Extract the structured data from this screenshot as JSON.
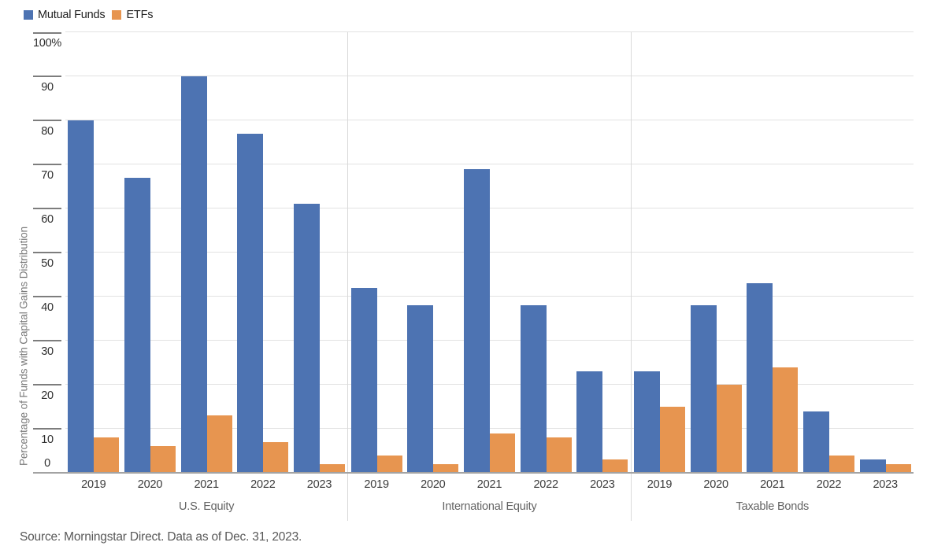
{
  "legend": {
    "mutual_funds": "Mutual Funds",
    "etfs": "ETFs"
  },
  "y_axis_title": "Percentage of Funds with Capital Gains Distribution",
  "source_note": "Source: Morningstar Direct. Data as of Dec. 31, 2023.",
  "colors": {
    "mutual_funds": "#4d73b2",
    "etfs": "#e79550",
    "gridline": "#e2e2e2",
    "baseline": "#a3a3a3"
  },
  "chart_data": {
    "type": "bar",
    "title": "",
    "xlabel": "",
    "ylabel": "Percentage of Funds with Capital Gains Distribution",
    "ylim": [
      0,
      100
    ],
    "grid": true,
    "legend_position": "top-left",
    "series_names": [
      "Mutual Funds",
      "ETFs"
    ],
    "y_tick_labels": [
      "100%",
      "90",
      "80",
      "70",
      "60",
      "50",
      "40",
      "30",
      "20",
      "10",
      "0"
    ],
    "y_tick_values": [
      100,
      90,
      80,
      70,
      60,
      50,
      40,
      30,
      20,
      10,
      0
    ],
    "x_years": [
      "2019",
      "2020",
      "2021",
      "2022",
      "2023"
    ],
    "sections": [
      {
        "category": "U.S. Equity",
        "series": [
          {
            "name": "Mutual Funds",
            "values": [
              80,
              67,
              90,
              77,
              61
            ]
          },
          {
            "name": "ETFs",
            "values": [
              8,
              6,
              13,
              7,
              2
            ]
          }
        ]
      },
      {
        "category": "International Equity",
        "series": [
          {
            "name": "Mutual Funds",
            "values": [
              42,
              38,
              69,
              38,
              23
            ]
          },
          {
            "name": "ETFs",
            "values": [
              4,
              2,
              9,
              8,
              3
            ]
          }
        ]
      },
      {
        "category": "Taxable Bonds",
        "series": [
          {
            "name": "Mutual Funds",
            "values": [
              23,
              38,
              43,
              14,
              3
            ]
          },
          {
            "name": "ETFs",
            "values": [
              15,
              20,
              24,
              4,
              2
            ]
          }
        ]
      }
    ]
  }
}
